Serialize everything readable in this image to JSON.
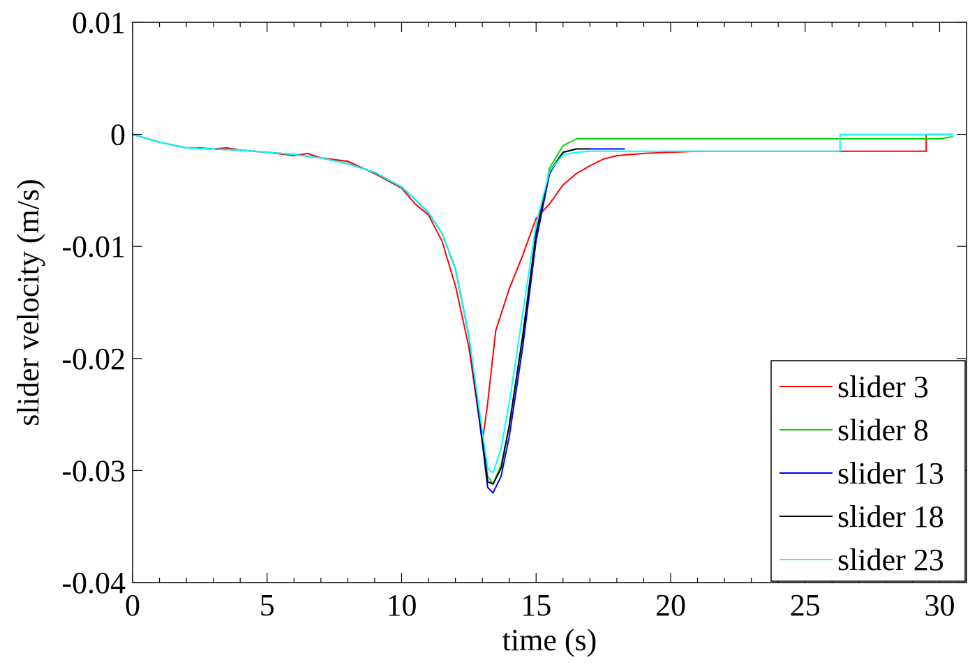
{
  "chart_data": {
    "type": "line",
    "xlabel": "time (s)",
    "ylabel": "slider velocity (m/s)",
    "xlim": [
      0,
      31
    ],
    "ylim": [
      -0.04,
      0.01
    ],
    "xticks": [
      0,
      5,
      10,
      15,
      20,
      25,
      30
    ],
    "xtick_labels": [
      "0",
      "5",
      "10",
      "15",
      "20",
      "25",
      "30"
    ],
    "yticks": [
      0.01,
      0,
      -0.01,
      -0.02,
      -0.03,
      -0.04
    ],
    "ytick_labels": [
      "0.01",
      "0",
      "-0.01",
      "-0.02",
      "-0.03",
      "-0.04"
    ],
    "grid": false,
    "legend_position": "bottom-right",
    "series": [
      {
        "name": "slider 3",
        "color": "#ff0000",
        "points": [
          [
            0,
            0
          ],
          [
            1,
            -0.0007
          ],
          [
            2,
            -0.0012
          ],
          [
            2.5,
            -0.0012
          ],
          [
            3,
            -0.0013
          ],
          [
            3.5,
            -0.0012
          ],
          [
            4,
            -0.0014
          ],
          [
            5,
            -0.0016
          ],
          [
            6,
            -0.0019
          ],
          [
            6.5,
            -0.0017
          ],
          [
            7,
            -0.0021
          ],
          [
            8,
            -0.0024
          ],
          [
            9,
            -0.0035
          ],
          [
            10,
            -0.0048
          ],
          [
            10.5,
            -0.0062
          ],
          [
            11,
            -0.0072
          ],
          [
            11.5,
            -0.0095
          ],
          [
            12,
            -0.0135
          ],
          [
            12.5,
            -0.019
          ],
          [
            12.8,
            -0.024
          ],
          [
            13,
            -0.0275
          ],
          [
            13.2,
            -0.024
          ],
          [
            13.5,
            -0.0175
          ],
          [
            14,
            -0.0138
          ],
          [
            14.5,
            -0.0108
          ],
          [
            15,
            -0.0075
          ],
          [
            15.5,
            -0.0062
          ],
          [
            16,
            -0.0045
          ],
          [
            16.5,
            -0.0035
          ],
          [
            17,
            -0.0028
          ],
          [
            17.5,
            -0.0022
          ],
          [
            18,
            -0.0019
          ],
          [
            19,
            -0.0017
          ],
          [
            20,
            -0.0016
          ],
          [
            21,
            -0.0015
          ],
          [
            22,
            -0.0015
          ],
          [
            23,
            -0.0015
          ],
          [
            24,
            -0.0015
          ],
          [
            25,
            -0.0015
          ],
          [
            26,
            -0.0015
          ],
          [
            27,
            -0.0015
          ],
          [
            28,
            -0.0015
          ],
          [
            29,
            -0.0015
          ],
          [
            29.5,
            -0.0015
          ],
          [
            29.5,
            0
          ],
          [
            30.5,
            0
          ]
        ]
      },
      {
        "name": "slider 8",
        "color": "#00dd00",
        "points": [
          [
            0,
            0
          ],
          [
            1,
            -0.0007
          ],
          [
            2,
            -0.0012
          ],
          [
            3,
            -0.0013
          ],
          [
            4,
            -0.0014
          ],
          [
            5,
            -0.0016
          ],
          [
            6,
            -0.0018
          ],
          [
            7,
            -0.0021
          ],
          [
            8,
            -0.0026
          ],
          [
            9,
            -0.0034
          ],
          [
            10,
            -0.0047
          ],
          [
            10.5,
            -0.0058
          ],
          [
            11,
            -0.007
          ],
          [
            11.5,
            -0.0088
          ],
          [
            12,
            -0.012
          ],
          [
            12.5,
            -0.018
          ],
          [
            13,
            -0.027
          ],
          [
            13.2,
            -0.0305
          ],
          [
            13.4,
            -0.0312
          ],
          [
            13.7,
            -0.0295
          ],
          [
            14,
            -0.026
          ],
          [
            14.5,
            -0.018
          ],
          [
            15,
            -0.009
          ],
          [
            15.5,
            -0.003
          ],
          [
            16,
            -0.001
          ],
          [
            16.5,
            -0.0004
          ],
          [
            17,
            -0.0004
          ],
          [
            20,
            -0.0004
          ],
          [
            25,
            -0.0004
          ],
          [
            29,
            -0.0004
          ],
          [
            30,
            -0.0004
          ],
          [
            30.5,
            -0.0002
          ]
        ]
      },
      {
        "name": "slider 13",
        "color": "#0000ff",
        "points": [
          [
            0,
            0
          ],
          [
            1,
            -0.0007
          ],
          [
            2,
            -0.0012
          ],
          [
            3,
            -0.0013
          ],
          [
            4,
            -0.0014
          ],
          [
            5,
            -0.0016
          ],
          [
            6,
            -0.0018
          ],
          [
            7,
            -0.0021
          ],
          [
            8,
            -0.0026
          ],
          [
            9,
            -0.0034
          ],
          [
            10,
            -0.0047
          ],
          [
            10.5,
            -0.0058
          ],
          [
            11,
            -0.007
          ],
          [
            11.5,
            -0.0088
          ],
          [
            12,
            -0.012
          ],
          [
            12.5,
            -0.018
          ],
          [
            13,
            -0.0275
          ],
          [
            13.2,
            -0.0315
          ],
          [
            13.4,
            -0.032
          ],
          [
            13.7,
            -0.0305
          ],
          [
            14,
            -0.027
          ],
          [
            14.5,
            -0.019
          ],
          [
            15,
            -0.0095
          ],
          [
            15.5,
            -0.0035
          ],
          [
            16,
            -0.0016
          ],
          [
            16.5,
            -0.0013
          ],
          [
            17,
            -0.0013
          ],
          [
            18,
            -0.0013
          ],
          [
            18.3,
            -0.0013
          ]
        ]
      },
      {
        "name": "slider 18",
        "color": "#000000",
        "points": [
          [
            0,
            0
          ],
          [
            1,
            -0.0007
          ],
          [
            2,
            -0.0012
          ],
          [
            3,
            -0.0013
          ],
          [
            4,
            -0.0014
          ],
          [
            5,
            -0.0016
          ],
          [
            6,
            -0.0018
          ],
          [
            7,
            -0.0021
          ],
          [
            8,
            -0.0026
          ],
          [
            9,
            -0.0034
          ],
          [
            10,
            -0.0047
          ],
          [
            10.5,
            -0.0058
          ],
          [
            11,
            -0.007
          ],
          [
            11.5,
            -0.0088
          ],
          [
            12,
            -0.012
          ],
          [
            12.5,
            -0.018
          ],
          [
            13,
            -0.027
          ],
          [
            13.2,
            -0.031
          ],
          [
            13.4,
            -0.0312
          ],
          [
            13.7,
            -0.0298
          ],
          [
            14,
            -0.026
          ],
          [
            14.5,
            -0.018
          ],
          [
            15,
            -0.0088
          ],
          [
            15.5,
            -0.0033
          ],
          [
            16,
            -0.0016
          ],
          [
            16.5,
            -0.0013
          ],
          [
            17,
            -0.0013
          ]
        ]
      },
      {
        "name": "slider 23",
        "color": "#00ffff",
        "points": [
          [
            0,
            0
          ],
          [
            1,
            -0.0007
          ],
          [
            2,
            -0.0012
          ],
          [
            3,
            -0.0013
          ],
          [
            4,
            -0.0014
          ],
          [
            5,
            -0.0016
          ],
          [
            6,
            -0.0018
          ],
          [
            7,
            -0.0021
          ],
          [
            8,
            -0.0026
          ],
          [
            9,
            -0.0034
          ],
          [
            10,
            -0.0047
          ],
          [
            10.5,
            -0.0058
          ],
          [
            11,
            -0.007
          ],
          [
            11.5,
            -0.0088
          ],
          [
            12,
            -0.012
          ],
          [
            12.5,
            -0.018
          ],
          [
            13,
            -0.0265
          ],
          [
            13.2,
            -0.0298
          ],
          [
            13.4,
            -0.0302
          ],
          [
            13.7,
            -0.028
          ],
          [
            14,
            -0.024
          ],
          [
            14.5,
            -0.016
          ],
          [
            15,
            -0.008
          ],
          [
            15.5,
            -0.0033
          ],
          [
            16,
            -0.0018
          ],
          [
            16.5,
            -0.0016
          ],
          [
            17,
            -0.0015
          ],
          [
            20,
            -0.0015
          ],
          [
            22,
            -0.0015
          ],
          [
            24,
            -0.0015
          ],
          [
            26,
            -0.0015
          ],
          [
            26.3,
            -0.0015
          ],
          [
            26.3,
            0
          ],
          [
            30.5,
            0
          ]
        ]
      }
    ]
  }
}
